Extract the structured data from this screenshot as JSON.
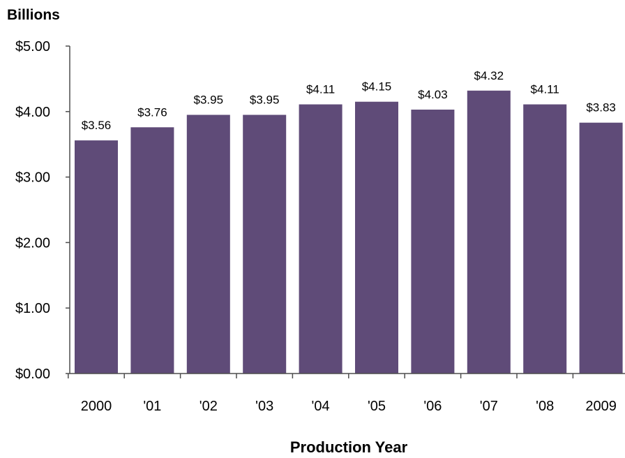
{
  "chart_data": {
    "type": "bar",
    "title": "",
    "ylabel": "Billions",
    "xlabel": "Production Year",
    "categories": [
      "2000",
      "'01",
      "'02",
      "'03",
      "'04",
      "'05",
      "'06",
      "'07",
      "'08",
      "2009"
    ],
    "values": [
      3.56,
      3.76,
      3.95,
      3.95,
      4.11,
      4.15,
      4.03,
      4.32,
      4.11,
      3.83
    ],
    "data_labels": [
      "$3.56",
      "$3.76",
      "$3.95",
      "$3.95",
      "$4.11",
      "$4.15",
      "$4.03",
      "$4.32",
      "$4.11",
      "$3.83"
    ],
    "ylim": [
      0,
      5
    ],
    "y_ticks": [
      0,
      1,
      2,
      3,
      4,
      5
    ],
    "y_tick_labels": [
      "$0.00",
      "$1.00",
      "$2.00",
      "$3.00",
      "$4.00",
      "$5.00"
    ],
    "grid": false,
    "legend": "none",
    "bar_color": "#5f4b78"
  }
}
